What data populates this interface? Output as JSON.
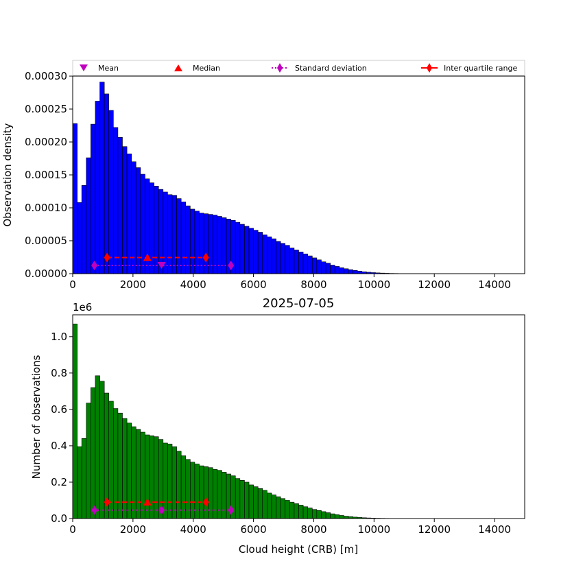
{
  "chart_data": [
    {
      "type": "bar",
      "panel": "top",
      "ylabel": "Observation density",
      "xlim": [
        0,
        15000
      ],
      "ylim": [
        0,
        0.0003
      ],
      "yticks": [
        "0.00000",
        "0.00005",
        "0.00010",
        "0.00015",
        "0.00020",
        "0.00025",
        "0.00030"
      ],
      "ytick_values": [
        0,
        5e-05,
        0.0001,
        0.00015,
        0.0002,
        0.00025,
        0.0003
      ],
      "xticks": [
        "0",
        "2000",
        "4000",
        "6000",
        "8000",
        "10000",
        "12000",
        "14000"
      ],
      "xtick_values": [
        0,
        2000,
        4000,
        6000,
        8000,
        10000,
        12000,
        14000
      ],
      "bin_width": 150,
      "bar_color": "#0000ff",
      "values": [
        0.000228,
        0.000108,
        0.000134,
        0.000176,
        0.000227,
        0.000262,
        0.000291,
        0.000273,
        0.000248,
        0.000222,
        0.000207,
        0.000193,
        0.000182,
        0.00017,
        0.000161,
        0.000151,
        0.000144,
        0.000138,
        0.000133,
        0.000128,
        0.000124,
        0.00012,
        0.000119,
        0.000114,
        0.000109,
        0.000103,
        9.8e-05,
        9.5e-05,
        9.2e-05,
        9.1e-05,
        9e-05,
        8.9e-05,
        8.7e-05,
        8.5e-05,
        8.3e-05,
        8.1e-05,
        7.8e-05,
        7.5e-05,
        7.2e-05,
        6.9e-05,
        6.6e-05,
        6.3e-05,
        5.9e-05,
        5.6e-05,
        5.3e-05,
        4.9e-05,
        4.6e-05,
        4.3e-05,
        3.9e-05,
        3.6e-05,
        3.3e-05,
        3e-05,
        2.7e-05,
        2.4e-05,
        2.1e-05,
        1.8e-05,
        1.6e-05,
        1.3e-05,
        1.1e-05,
        9e-06,
        7.5e-06,
        6.1e-06,
        4.9e-06,
        3.8e-06,
        2.9e-06,
        2.2e-06,
        1.6e-06,
        1.2e-06,
        9e-07,
        6e-07,
        4e-07,
        3e-07,
        2e-07,
        1e-07,
        1e-07,
        5e-08,
        3e-08,
        2e-08,
        1e-08,
        5e-09
      ],
      "markers": {
        "mean": {
          "x": 2950,
          "y": 1.25e-05
        },
        "median": {
          "x": 2480,
          "y": 2.45e-05
        },
        "std_range": {
          "x": [
            720,
            5250
          ],
          "y": 1.25e-05
        },
        "iqr_range": {
          "x": [
            1140,
            4420
          ],
          "y": 2.45e-05
        }
      }
    },
    {
      "type": "bar",
      "panel": "bottom",
      "title": "2025-07-05",
      "xlabel": "Cloud height (CRB) [m]",
      "ylabel": "Number of observations",
      "scale_label": "1e6",
      "xlim": [
        0,
        15000
      ],
      "ylim": [
        0,
        1.12
      ],
      "yticks": [
        "0.0",
        "0.2",
        "0.4",
        "0.6",
        "0.8",
        "1.0"
      ],
      "ytick_values": [
        0,
        0.2,
        0.4,
        0.6,
        0.8,
        1.0
      ],
      "xticks": [
        "0",
        "2000",
        "4000",
        "6000",
        "8000",
        "10000",
        "12000",
        "14000"
      ],
      "xtick_values": [
        0,
        2000,
        4000,
        6000,
        8000,
        10000,
        12000,
        14000
      ],
      "bin_width": 150,
      "bar_color": "#008000",
      "values": [
        1.07,
        0.395,
        0.44,
        0.635,
        0.72,
        0.785,
        0.755,
        0.69,
        0.645,
        0.605,
        0.58,
        0.55,
        0.525,
        0.505,
        0.49,
        0.475,
        0.46,
        0.455,
        0.45,
        0.435,
        0.415,
        0.41,
        0.395,
        0.37,
        0.345,
        0.325,
        0.31,
        0.3,
        0.29,
        0.285,
        0.28,
        0.27,
        0.265,
        0.255,
        0.245,
        0.235,
        0.22,
        0.21,
        0.2,
        0.185,
        0.175,
        0.165,
        0.155,
        0.14,
        0.13,
        0.12,
        0.11,
        0.1,
        0.09,
        0.082,
        0.074,
        0.065,
        0.058,
        0.05,
        0.044,
        0.038,
        0.032,
        0.026,
        0.021,
        0.017,
        0.013,
        0.0105,
        0.008,
        0.006,
        0.0045,
        0.0033,
        0.0024,
        0.0018,
        0.0013,
        0.0009,
        0.0006,
        0.0004,
        0.0003,
        0.0002,
        0.00015,
        0.0001,
        7e-05,
        5e-05,
        3e-05,
        2e-05
      ],
      "markers": {
        "mean": {
          "x": 2950,
          "y": 0.046
        },
        "median": {
          "x": 2480,
          "y": 0.09
        },
        "std_range": {
          "x": [
            720,
            5250
          ],
          "y": 0.046
        },
        "iqr_range": {
          "x": [
            1140,
            4420
          ],
          "y": 0.09
        }
      }
    }
  ],
  "legend": {
    "placement": "above-top-panel",
    "entries": [
      {
        "label": "Mean",
        "color": "#bf00bf",
        "marker": "triangle-down"
      },
      {
        "label": "Median",
        "color": "#ff0000",
        "marker": "triangle-up"
      },
      {
        "label": "Standard deviation",
        "color": "#bf00bf",
        "marker": "diamond-dotted"
      },
      {
        "label": "Inter quartile range",
        "color": "#ff0000",
        "marker": "diamond-solid"
      }
    ]
  },
  "colors": {
    "mean": "#bf00bf",
    "median": "#ff0000",
    "std": "#bf00bf",
    "iqr": "#ff0000"
  }
}
